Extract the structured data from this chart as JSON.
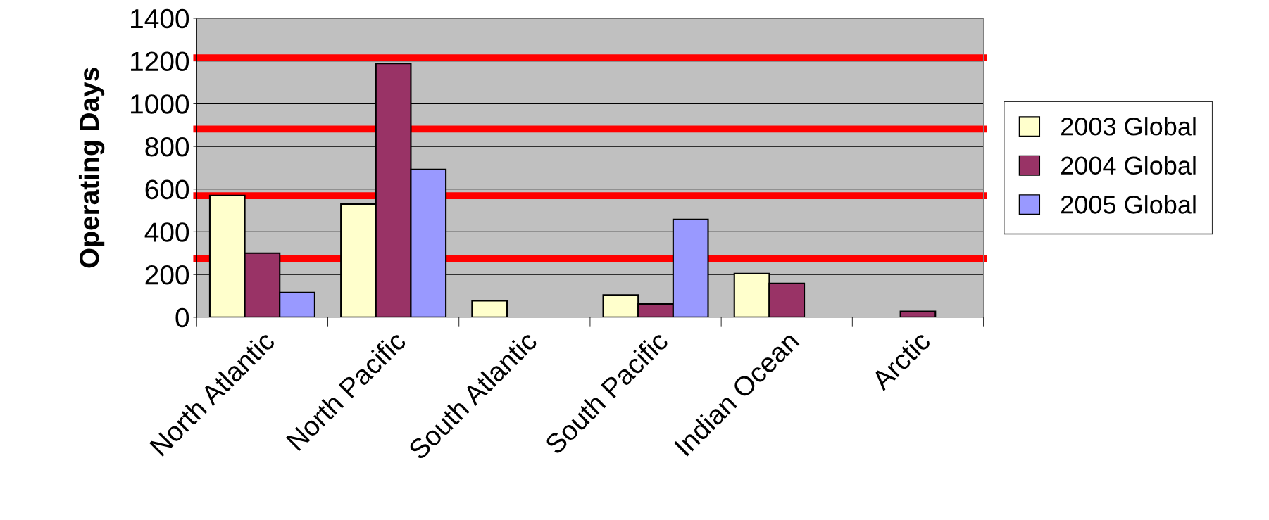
{
  "chart_data": {
    "type": "bar",
    "ylabel": "Operating Days",
    "categories": [
      "North Atlantic",
      "North Pacific",
      "South Atlantic",
      "South Pacific",
      "Indian Ocean",
      "Arctic"
    ],
    "series": [
      {
        "name": "2003 Global",
        "color": "#ffffcc",
        "values": [
          570,
          530,
          77,
          104,
          204,
          null
        ]
      },
      {
        "name": "2004 Global",
        "color": "#993366",
        "values": [
          300,
          1188,
          null,
          62,
          158,
          27
        ]
      },
      {
        "name": "2005 Global",
        "color": "#9999ff",
        "values": [
          115,
          692,
          null,
          458,
          null,
          null
        ]
      }
    ],
    "ylim": [
      0,
      1400
    ],
    "yticks": [
      0,
      200,
      400,
      600,
      800,
      1000,
      1200,
      1400
    ],
    "grid": "y",
    "legend": "right",
    "ref_lines": [
      {
        "axis": "y",
        "value": 1215,
        "color": "#ff0000"
      },
      {
        "axis": "y",
        "value": 881,
        "color": "#ff0000"
      },
      {
        "axis": "y",
        "value": 569,
        "color": "#ff0000"
      },
      {
        "axis": "y",
        "value": 273,
        "color": "#ff0000"
      }
    ]
  }
}
